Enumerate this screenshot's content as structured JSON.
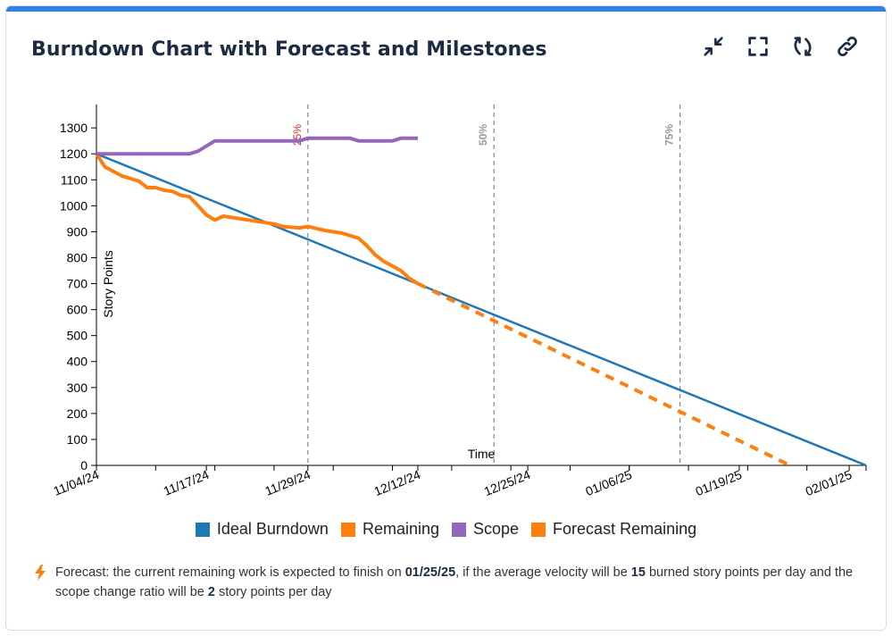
{
  "title": "Burndown Chart with Forecast and Milestones",
  "toolbar": {
    "icons": [
      "collapse-icon",
      "fullscreen-icon",
      "refresh-icon",
      "link-icon"
    ]
  },
  "colors": {
    "ideal": "#1f77b4",
    "remaining": "#ff7f0e",
    "scope": "#9467bd",
    "forecast": "#ff7f0e",
    "milestone_25": "#d62728",
    "milestone_other": "#999999",
    "accent_bar": "#2f80ed"
  },
  "chart_data": {
    "type": "line",
    "xlabel": "Time",
    "ylabel": "Story Points",
    "ylim": [
      0,
      1300
    ],
    "yticks": [
      0,
      100,
      200,
      300,
      400,
      500,
      600,
      700,
      800,
      900,
      1000,
      1100,
      1200,
      1300
    ],
    "xlim": [
      "11/04/24",
      "02/03/25"
    ],
    "xtick_labels": [
      "11/04/24",
      "11/17/24",
      "11/29/24",
      "12/12/24",
      "12/25/24",
      "01/06/25",
      "01/19/25",
      "02/01/25"
    ],
    "legend_position": "bottom",
    "milestones": [
      {
        "label": "25%",
        "date": "11/29/24"
      },
      {
        "label": "50%",
        "date": "12/21/24"
      },
      {
        "label": "75%",
        "date": "01/12/25"
      }
    ],
    "series": [
      {
        "name": "Ideal Burndown",
        "style": "solid",
        "points": [
          [
            "11/04/24",
            1200
          ],
          [
            "02/03/25",
            0
          ]
        ]
      },
      {
        "name": "Remaining",
        "style": "solid",
        "points": [
          [
            "11/04/24",
            1200
          ],
          [
            "11/05/24",
            1150
          ],
          [
            "11/07/24",
            1115
          ],
          [
            "11/09/24",
            1095
          ],
          [
            "11/10/24",
            1070
          ],
          [
            "11/11/24",
            1070
          ],
          [
            "11/12/24",
            1060
          ],
          [
            "11/13/24",
            1055
          ],
          [
            "11/14/24",
            1040
          ],
          [
            "11/15/24",
            1035
          ],
          [
            "11/16/24",
            1000
          ],
          [
            "11/17/24",
            965
          ],
          [
            "11/18/24",
            945
          ],
          [
            "11/19/24",
            960
          ],
          [
            "11/21/24",
            950
          ],
          [
            "11/23/24",
            940
          ],
          [
            "11/25/24",
            930
          ],
          [
            "11/26/24",
            920
          ],
          [
            "11/28/24",
            915
          ],
          [
            "11/29/24",
            920
          ],
          [
            "12/01/24",
            905
          ],
          [
            "12/03/24",
            895
          ],
          [
            "12/05/24",
            875
          ],
          [
            "12/06/24",
            845
          ],
          [
            "12/07/24",
            810
          ],
          [
            "12/08/24",
            785
          ],
          [
            "12/10/24",
            750
          ],
          [
            "12/11/24",
            720
          ],
          [
            "12/12/24",
            700
          ]
        ]
      },
      {
        "name": "Scope",
        "style": "solid",
        "points": [
          [
            "11/04/24",
            1200
          ],
          [
            "11/15/24",
            1200
          ],
          [
            "11/16/24",
            1210
          ],
          [
            "11/18/24",
            1250
          ],
          [
            "11/28/24",
            1250
          ],
          [
            "11/29/24",
            1260
          ],
          [
            "12/04/24",
            1260
          ],
          [
            "12/05/24",
            1250
          ],
          [
            "12/09/24",
            1250
          ],
          [
            "12/10/24",
            1260
          ],
          [
            "12/12/24",
            1260
          ]
        ]
      },
      {
        "name": "Forecast Remaining",
        "style": "dashed",
        "points": [
          [
            "12/12/24",
            700
          ],
          [
            "01/25/25",
            0
          ]
        ]
      }
    ]
  },
  "forecast": {
    "text_1": "Forecast: the current remaining work is expected to finish on ",
    "date": "01/25/25",
    "text_2": ", if the average velocity will be ",
    "velocity": "15",
    "text_3": " burned story points per day and the scope change ratio will be ",
    "scope_ratio": "2",
    "text_4": " story points per day"
  }
}
